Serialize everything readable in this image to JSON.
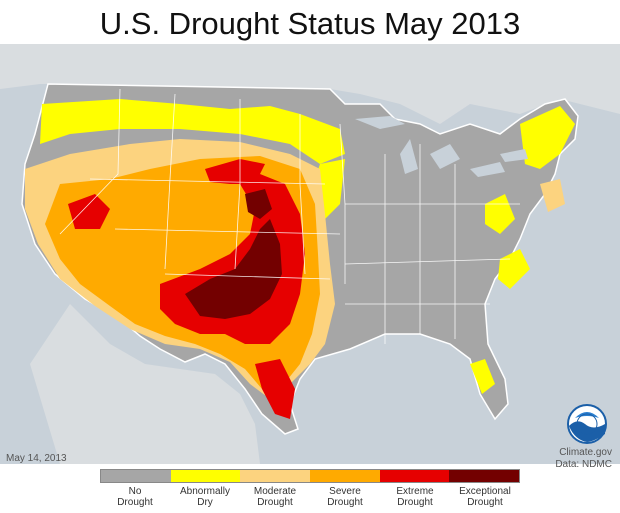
{
  "header": {
    "title": "U.S. Drought Status May 2013"
  },
  "footer": {
    "date": "May 14, 2013",
    "credit_line1": "Climate.gov",
    "credit_line2": "Data: NDMC"
  },
  "logo": {
    "text": "NOAA"
  },
  "legend": {
    "items": [
      {
        "line1": "No",
        "line2": "Drought",
        "color": "#a6a6a6"
      },
      {
        "line1": "Abnormally",
        "line2": "Dry",
        "color": "#ffff00"
      },
      {
        "line1": "Moderate",
        "line2": "Drought",
        "color": "#fcd37f"
      },
      {
        "line1": "Severe",
        "line2": "Drought",
        "color": "#ffaa00"
      },
      {
        "line1": "Extreme",
        "line2": "Drought",
        "color": "#e60000"
      },
      {
        "line1": "Exceptional",
        "line2": "Drought",
        "color": "#730000"
      }
    ]
  },
  "colors": {
    "background_water": "#c8d1d9",
    "land_outside": "#d9dde0",
    "state_borders": "#ffffff"
  }
}
